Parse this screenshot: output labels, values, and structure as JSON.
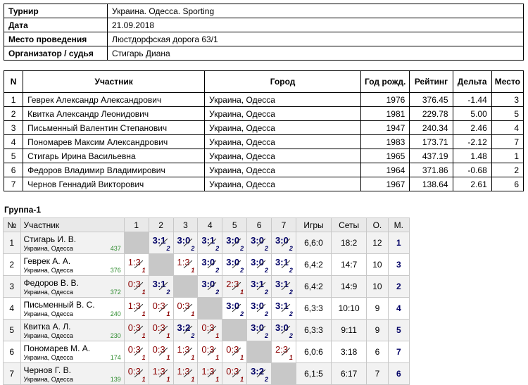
{
  "info": [
    {
      "label": "Турнир",
      "value": "Украина. Одесса. Sporting"
    },
    {
      "label": "Дата",
      "value": "21.09.2018"
    },
    {
      "label": "Место проведения",
      "value": "Люстдорфская дорога 63/1"
    },
    {
      "label": "Организатор / судья",
      "value": "Стигарь Диана"
    }
  ],
  "participants_headers": [
    "N",
    "Участник",
    "Город",
    "Год рожд.",
    "Рейтинг",
    "Дельта",
    "Место"
  ],
  "participants": [
    {
      "n": "1",
      "name": "Геврек Александр Александрович",
      "city": "Украина, Одесса",
      "year": "1976",
      "rating": "376.45",
      "delta": "-1.44",
      "place": "3"
    },
    {
      "n": "2",
      "name": "Квитка Александр Леонидович",
      "city": "Украина, Одесса",
      "year": "1981",
      "rating": "229.78",
      "delta": "5.00",
      "place": "5"
    },
    {
      "n": "3",
      "name": "Письменный Валентин Степанович",
      "city": "Украина, Одесса",
      "year": "1947",
      "rating": "240.34",
      "delta": "2.46",
      "place": "4"
    },
    {
      "n": "4",
      "name": "Пономарев Максим Александрович",
      "city": "Украина, Одесса",
      "year": "1983",
      "rating": "173.71",
      "delta": "-2.12",
      "place": "7"
    },
    {
      "n": "5",
      "name": "Стигарь Ирина Васильевна",
      "city": "Украина, Одесса",
      "year": "1965",
      "rating": "437.19",
      "delta": "1.48",
      "place": "1"
    },
    {
      "n": "6",
      "name": "Федоров Владимир Владимирович",
      "city": "Украина, Одесса",
      "year": "1964",
      "rating": "371.86",
      "delta": "-0.68",
      "place": "2"
    },
    {
      "n": "7",
      "name": "Чернов Геннадий Викторович",
      "city": "Украина, Одесса",
      "year": "1967",
      "rating": "138.64",
      "delta": "2.61",
      "place": "6"
    }
  ],
  "group_title": "Группа-1",
  "group_headers": {
    "no": "№",
    "player": "Участник",
    "cols": [
      "1",
      "2",
      "3",
      "4",
      "5",
      "6",
      "7"
    ],
    "games": "Игры",
    "sets": "Сеты",
    "points": "О.",
    "place": "М."
  },
  "group": [
    {
      "n": "1",
      "name": "Стигарь И. В.",
      "city": "Украина, Одесса",
      "rating": "437",
      "results": [
        null,
        {
          "s": "3:1",
          "p": "2",
          "w": true
        },
        {
          "s": "3:0",
          "p": "2",
          "w": true
        },
        {
          "s": "3:1",
          "p": "2",
          "w": true
        },
        {
          "s": "3:0",
          "p": "2",
          "w": true
        },
        {
          "s": "3:0",
          "p": "2",
          "w": true
        },
        {
          "s": "3:0",
          "p": "2",
          "w": true
        }
      ],
      "games": "6,6:0",
      "sets": "18:2",
      "points": "12",
      "place": "1"
    },
    {
      "n": "2",
      "name": "Геврек А. А.",
      "city": "Украина, Одесса",
      "rating": "376",
      "results": [
        {
          "s": "1:3",
          "p": "1",
          "w": false
        },
        null,
        {
          "s": "1:3",
          "p": "1",
          "w": false
        },
        {
          "s": "3:0",
          "p": "2",
          "w": true
        },
        {
          "s": "3:0",
          "p": "2",
          "w": true
        },
        {
          "s": "3:0",
          "p": "2",
          "w": true
        },
        {
          "s": "3:1",
          "p": "2",
          "w": true
        }
      ],
      "games": "6,4:2",
      "sets": "14:7",
      "points": "10",
      "place": "3"
    },
    {
      "n": "3",
      "name": "Федоров В. В.",
      "city": "Украина, Одесса",
      "rating": "372",
      "results": [
        {
          "s": "0:3",
          "p": "1",
          "w": false
        },
        {
          "s": "3:1",
          "p": "2",
          "w": true
        },
        null,
        {
          "s": "3:0",
          "p": "2",
          "w": true
        },
        {
          "s": "2:3",
          "p": "1",
          "w": false
        },
        {
          "s": "3:1",
          "p": "2",
          "w": true
        },
        {
          "s": "3:1",
          "p": "2",
          "w": true
        }
      ],
      "games": "6,4:2",
      "sets": "14:9",
      "points": "10",
      "place": "2"
    },
    {
      "n": "4",
      "name": "Письменный В. С.",
      "city": "Украина, Одесса",
      "rating": "240",
      "results": [
        {
          "s": "1:3",
          "p": "1",
          "w": false
        },
        {
          "s": "0:3",
          "p": "1",
          "w": false
        },
        {
          "s": "0:3",
          "p": "1",
          "w": false
        },
        null,
        {
          "s": "3:0",
          "p": "2",
          "w": true
        },
        {
          "s": "3:0",
          "p": "2",
          "w": true
        },
        {
          "s": "3:1",
          "p": "2",
          "w": true
        }
      ],
      "games": "6,3:3",
      "sets": "10:10",
      "points": "9",
      "place": "4"
    },
    {
      "n": "5",
      "name": "Квитка А. Л.",
      "city": "Украина, Одесса",
      "rating": "230",
      "results": [
        {
          "s": "0:3",
          "p": "1",
          "w": false
        },
        {
          "s": "0:3",
          "p": "1",
          "w": false
        },
        {
          "s": "3:2",
          "p": "2",
          "w": true
        },
        {
          "s": "0:3",
          "p": "1",
          "w": false
        },
        null,
        {
          "s": "3:0",
          "p": "2",
          "w": true
        },
        {
          "s": "3:0",
          "p": "2",
          "w": true
        }
      ],
      "games": "6,3:3",
      "sets": "9:11",
      "points": "9",
      "place": "5"
    },
    {
      "n": "6",
      "name": "Пономарев М. А.",
      "city": "Украина, Одесса",
      "rating": "174",
      "results": [
        {
          "s": "0:3",
          "p": "1",
          "w": false
        },
        {
          "s": "0:3",
          "p": "1",
          "w": false
        },
        {
          "s": "1:3",
          "p": "1",
          "w": false
        },
        {
          "s": "0:3",
          "p": "1",
          "w": false
        },
        {
          "s": "0:3",
          "p": "1",
          "w": false
        },
        null,
        {
          "s": "2:3",
          "p": "1",
          "w": false
        }
      ],
      "games": "6,0:6",
      "sets": "3:18",
      "points": "6",
      "place": "7"
    },
    {
      "n": "7",
      "name": "Чернов Г. В.",
      "city": "Украина, Одесса",
      "rating": "139",
      "results": [
        {
          "s": "0:3",
          "p": "1",
          "w": false
        },
        {
          "s": "1:3",
          "p": "1",
          "w": false
        },
        {
          "s": "1:3",
          "p": "1",
          "w": false
        },
        {
          "s": "1:3",
          "p": "1",
          "w": false
        },
        {
          "s": "0:3",
          "p": "1",
          "w": false
        },
        {
          "s": "3:2",
          "p": "2",
          "w": true
        },
        null
      ],
      "games": "6,1:5",
      "sets": "6:17",
      "points": "7",
      "place": "6"
    }
  ]
}
